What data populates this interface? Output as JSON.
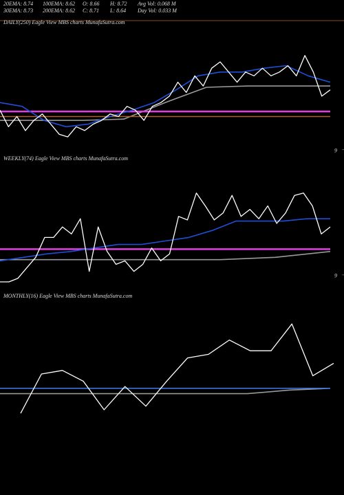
{
  "header": {
    "stats": [
      [
        "20EMA: 8.74",
        "100EMA: 8.62",
        "O: 8.66",
        "H: 8.72",
        "Avg Vol: 0.068  M"
      ],
      [
        "30EMA: 8.73",
        "200EMA: 8.62",
        "C: 8.71",
        "L: 8.64",
        "Day Vol: 0.033 M"
      ]
    ]
  },
  "chart_data": [
    {
      "type": "line",
      "title": "DAILY(250) Eagle   View  MBS charts MunafaSutra.com",
      "ylim": [
        8.96,
        9.96
      ],
      "yticks": [
        9
      ],
      "series": [
        {
          "color": "#9a9a9a",
          "values": [
            9.23,
            9.23,
            9.23,
            9.24,
            9.37,
            9.49,
            9.5,
            9.5,
            9.5
          ]
        },
        {
          "color": "#b0602a",
          "values": [
            9.26,
            9.26
          ]
        },
        {
          "color": "#e040e0",
          "values": [
            9.3,
            9.3
          ]
        },
        {
          "color": "#1f4fd8",
          "values": [
            9.37,
            9.34,
            9.23,
            9.18,
            9.2,
            9.26,
            9.31,
            9.37,
            9.47,
            9.58,
            9.61,
            9.61,
            9.64,
            9.66,
            9.58,
            9.53
          ]
        },
        {
          "color": "#ffffff",
          "values": [
            9.31,
            9.18,
            9.26,
            9.15,
            9.23,
            9.28,
            9.2,
            9.12,
            9.1,
            9.18,
            9.15,
            9.2,
            9.23,
            9.28,
            9.26,
            9.34,
            9.31,
            9.23,
            9.34,
            9.37,
            9.42,
            9.53,
            9.45,
            9.58,
            9.5,
            9.64,
            9.69,
            9.61,
            9.53,
            9.61,
            9.58,
            9.64,
            9.58,
            9.61,
            9.66,
            9.58,
            9.74,
            9.61,
            9.42,
            9.47
          ]
        }
      ]
    },
    {
      "type": "line",
      "title": "WEEKLY(74) Eagle   View  MBS charts MunafaSutra.com",
      "ylim": [
        8.94,
        9.94
      ],
      "yticks": [
        9
      ],
      "series": [
        {
          "color": "#9a9a9a",
          "values": [
            9.13,
            9.13,
            9.13,
            9.13,
            9.13,
            9.15,
            9.2
          ]
        },
        {
          "color": "#e040e0",
          "values": [
            9.22,
            9.22
          ]
        },
        {
          "color": "#1f4fd8",
          "values": [
            9.12,
            9.15,
            9.18,
            9.2,
            9.23,
            9.26,
            9.26,
            9.29,
            9.32,
            9.38,
            9.46,
            9.46,
            9.46,
            9.48,
            9.48
          ]
        },
        {
          "color": "#ffffff",
          "values": [
            8.94,
            8.94,
            8.97,
            9.06,
            9.15,
            9.32,
            9.32,
            9.41,
            9.35,
            9.48,
            9.03,
            9.41,
            9.2,
            9.09,
            9.12,
            9.03,
            9.09,
            9.23,
            9.12,
            9.18,
            9.5,
            9.47,
            9.7,
            9.59,
            9.47,
            9.53,
            9.68,
            9.5,
            9.56,
            9.48,
            9.59,
            9.44,
            9.53,
            9.68,
            9.7,
            9.59,
            9.35,
            9.41
          ]
        }
      ]
    },
    {
      "type": "line",
      "title": "MONTHLY(16) Eagle   View  MBS charts MunafaSutra.com",
      "ylim": [
        8.9,
        9.9
      ],
      "series": [
        {
          "color": "#9a9a9a",
          "values": [
            9.39,
            9.39,
            9.39,
            9.39,
            9.39,
            9.39,
            9.39,
            9.41,
            9.42
          ]
        },
        {
          "color": "#3a6fe0",
          "values": [
            9.42,
            9.42
          ]
        },
        {
          "color": "#ffffff",
          "values": [
            9.28,
            9.5,
            9.52,
            9.46,
            9.3,
            9.43,
            9.32,
            9.46,
            9.59,
            9.61,
            9.69,
            9.63,
            9.63,
            9.78,
            9.49,
            9.56
          ]
        }
      ]
    }
  ]
}
